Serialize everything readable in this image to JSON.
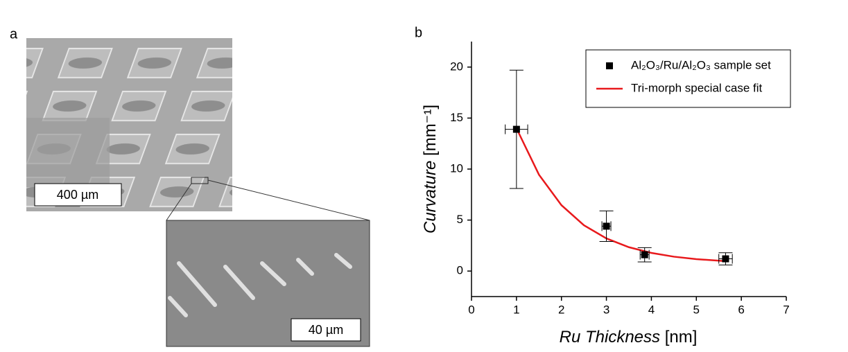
{
  "panel_labels": [
    "a",
    "b"
  ],
  "scale_bars": [
    "400 µm",
    "40 µm"
  ],
  "chart_data": {
    "type": "scatter",
    "xlabel_italic": "Ru Thickness",
    "xlabel_unit": "[nm]",
    "ylabel_italic": "Curvature",
    "ylabel_unit": "[mm⁻¹]",
    "xlim": [
      0,
      7
    ],
    "xticks": [
      0,
      1,
      2,
      3,
      4,
      5,
      6,
      7
    ],
    "ylim": [
      -2.5,
      22.5
    ],
    "yticks": [
      0,
      5,
      10,
      15,
      20
    ],
    "legend": "upper right",
    "series": [
      {
        "name": "Al₂O₃/Ru/Al₂O₃ sample set",
        "type": "scatter",
        "color": "#000000",
        "x": [
          1,
          3,
          3.85,
          5.65
        ],
        "values": [
          13.9,
          4.4,
          1.6,
          1.2
        ],
        "xerr": [
          0.25,
          0.1,
          0.1,
          0.15
        ],
        "yerr": [
          5.8,
          1.5,
          0.7,
          0.6
        ]
      },
      {
        "name": "Tri-morph special case fit",
        "type": "line",
        "color": "#e8191c",
        "x": [
          1,
          1.5,
          2,
          2.5,
          3,
          3.5,
          4,
          4.5,
          5,
          5.65
        ],
        "values": [
          14.0,
          9.45,
          6.46,
          4.49,
          3.2,
          2.34,
          1.78,
          1.41,
          1.17,
          0.97
        ]
      }
    ]
  }
}
